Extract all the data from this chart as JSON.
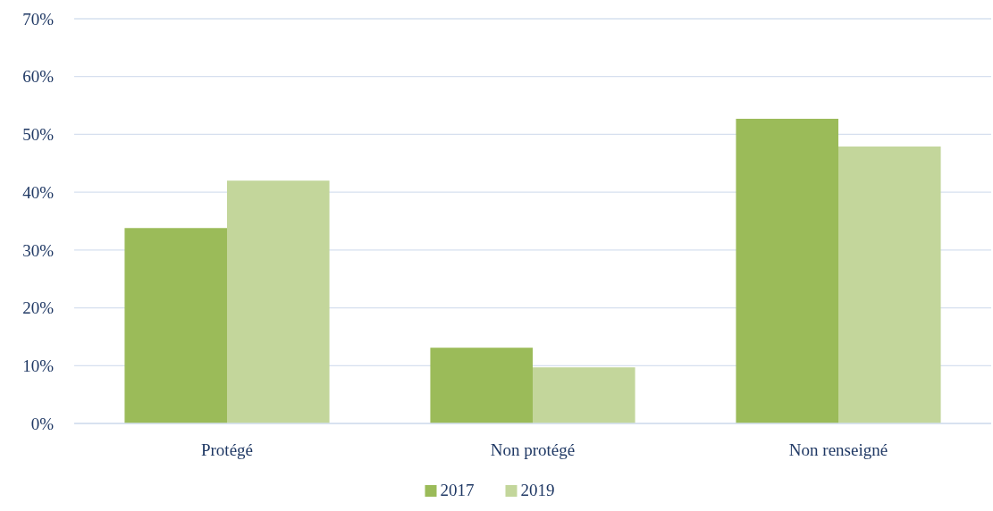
{
  "chart_data": {
    "type": "bar",
    "categories": [
      "Protégé",
      "Non protégé",
      "Non renseigné"
    ],
    "series": [
      {
        "name": "2017",
        "color": "#9bbb59",
        "values": [
          33.8,
          13.1,
          52.7
        ]
      },
      {
        "name": "2019",
        "color": "#c3d69b",
        "values": [
          42,
          9.7,
          47.9
        ]
      }
    ],
    "ylim": [
      0,
      70
    ],
    "yticks": [
      {
        "value": 0,
        "label": "0%"
      },
      {
        "value": 10,
        "label": "10%"
      },
      {
        "value": 20,
        "label": "20%"
      },
      {
        "value": 30,
        "label": "30%"
      },
      {
        "value": 40,
        "label": "40%"
      },
      {
        "value": 50,
        "label": "50%"
      },
      {
        "value": 60,
        "label": "60%"
      },
      {
        "value": 70,
        "label": "70%"
      }
    ],
    "grid": "y",
    "legend": "bottom"
  }
}
